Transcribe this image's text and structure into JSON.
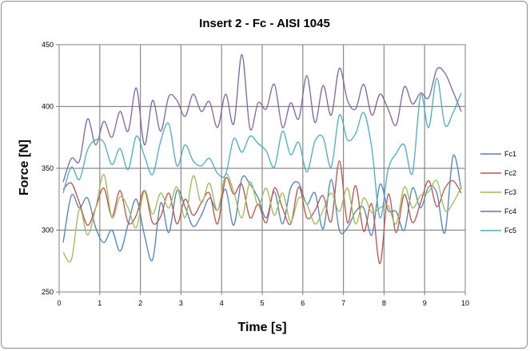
{
  "chart_data": {
    "type": "line",
    "title": "Insert 2 - Fc - AISI 1045",
    "xlabel": "Time [s]",
    "ylabel": "Force [N]",
    "xlim": [
      0,
      10
    ],
    "ylim": [
      250,
      450
    ],
    "xticks": [
      "0",
      "1",
      "2",
      "3",
      "4",
      "5",
      "6",
      "7",
      "8",
      "9",
      "10"
    ],
    "yticks": [
      "250",
      "300",
      "350",
      "400",
      "450"
    ],
    "grid": true,
    "legend_position": "right",
    "x": [
      0.1,
      0.3,
      0.5,
      0.7,
      0.9,
      1.1,
      1.3,
      1.5,
      1.7,
      1.9,
      2.1,
      2.3,
      2.5,
      2.7,
      2.9,
      3.1,
      3.3,
      3.5,
      3.7,
      3.9,
      4.1,
      4.3,
      4.5,
      4.7,
      4.9,
      5.1,
      5.3,
      5.5,
      5.7,
      5.9,
      6.1,
      6.3,
      6.5,
      6.7,
      6.9,
      7.1,
      7.3,
      7.5,
      7.7,
      7.9,
      8.1,
      8.3,
      8.5,
      8.7,
      8.9,
      9.1,
      9.3,
      9.5,
      9.7,
      9.9
    ],
    "series": [
      {
        "name": "Fc1",
        "color": "#4f81bd",
        "values": [
          290,
          328,
          318,
          326,
          302,
          290,
          300,
          283,
          305,
          325,
          296,
          276,
          322,
          298,
          332,
          319,
          303,
          312,
          326,
          316,
          333,
          304,
          342,
          337,
          326,
          310,
          331,
          305,
          334,
          338,
          321,
          330,
          301,
          341,
          300,
          302,
          315,
          318,
          296,
          337,
          316,
          315,
          300,
          334,
          318,
          335,
          330,
          298,
          360,
          333
        ]
      },
      {
        "name": "Fc2",
        "color": "#c0504d",
        "values": [
          333,
          338,
          322,
          304,
          318,
          334,
          311,
          332,
          306,
          312,
          332,
          306,
          311,
          330,
          305,
          325,
          312,
          322,
          330,
          305,
          342,
          329,
          337,
          310,
          321,
          306,
          334,
          318,
          305,
          335,
          310,
          316,
          328,
          307,
          356,
          306,
          336,
          299,
          321,
          273,
          329,
          298,
          329,
          306,
          322,
          340,
          319,
          334,
          340,
          330
        ]
      },
      {
        "name": "Fc3",
        "color": "#9bbb59",
        "values": [
          282,
          276,
          317,
          296,
          318,
          345,
          310,
          327,
          318,
          302,
          332,
          313,
          330,
          318,
          335,
          310,
          344,
          322,
          338,
          316,
          345,
          331,
          310,
          339,
          320,
          334,
          312,
          330,
          307,
          326,
          321,
          305,
          316,
          330,
          315,
          334,
          305,
          326,
          314,
          318,
          320,
          305,
          335,
          318,
          328,
          331,
          340,
          316,
          322,
          335
        ]
      },
      {
        "name": "Fc4",
        "color": "#8064a2",
        "values": [
          339,
          358,
          356,
          390,
          369,
          388,
          375,
          396,
          380,
          415,
          369,
          405,
          380,
          408,
          405,
          392,
          410,
          396,
          404,
          383,
          410,
          386,
          442,
          382,
          403,
          398,
          418,
          383,
          403,
          390,
          425,
          387,
          417,
          393,
          431,
          405,
          398,
          418,
          393,
          410,
          398,
          385,
          416,
          402,
          411,
          407,
          430,
          427,
          412,
          396
        ]
      },
      {
        "name": "Fc5",
        "color": "#4bacc6",
        "values": [
          330,
          351,
          341,
          365,
          373,
          371,
          353,
          366,
          349,
          376,
          360,
          345,
          372,
          386,
          352,
          369,
          356,
          352,
          358,
          346,
          345,
          374,
          363,
          376,
          370,
          364,
          351,
          380,
          361,
          371,
          347,
          372,
          375,
          351,
          393,
          373,
          378,
          395,
          366,
          310,
          349,
          362,
          369,
          346,
          409,
          383,
          423,
          385,
          395,
          411
        ]
      }
    ]
  }
}
